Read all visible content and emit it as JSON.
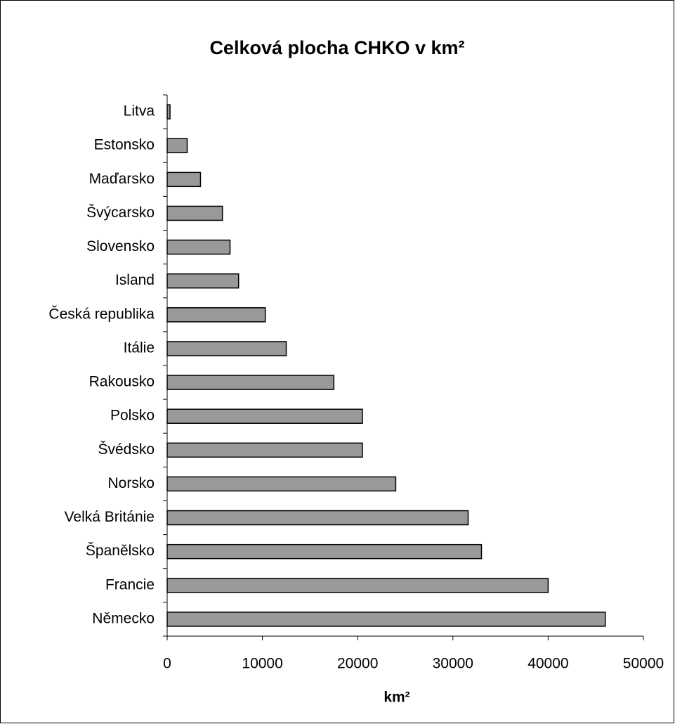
{
  "chart_data": {
    "type": "bar",
    "orientation": "horizontal",
    "title": "Celková plocha CHKO v km²",
    "x_label": "km²",
    "categories": [
      "Litva",
      "Estonsko",
      "Maďarsko",
      "Švýcarsko",
      "Slovensko",
      "Island",
      "Česká republika",
      "Itálie",
      "Rakousko",
      "Polsko",
      "Švédsko",
      "Norsko",
      "Velká Británie",
      "Španělsko",
      "Francie",
      "Německo"
    ],
    "values": [
      300,
      2100,
      3500,
      5800,
      6600,
      7500,
      10300,
      12500,
      17500,
      20500,
      20500,
      24000,
      31600,
      33000,
      40000,
      46000
    ],
    "color": "#999999",
    "xlim": [
      0,
      50000
    ],
    "xticks": [
      0,
      10000,
      20000,
      30000,
      40000,
      50000
    ],
    "grid": false
  }
}
